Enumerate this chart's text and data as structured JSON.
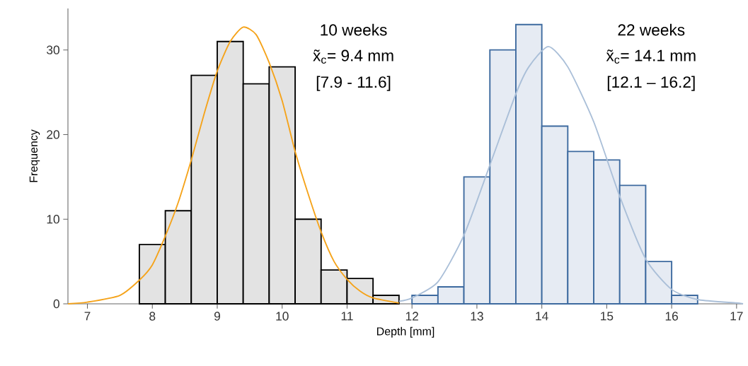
{
  "chart_data": {
    "type": "histogram",
    "xlabel": "Depth [mm]",
    "ylabel": "Frequency",
    "xlim": [
      6.7,
      17.1
    ],
    "xticks": [
      7,
      8,
      9,
      10,
      11,
      12,
      13,
      14,
      15,
      16,
      17
    ],
    "ylim": [
      0,
      34.9
    ],
    "yticks": [
      0,
      10,
      20,
      30
    ],
    "annotations": [
      "10 weeks",
      "x̃$_{c}$= 9.4 mm",
      "[7.9 - 11.6]",
      "22 weeks",
      "x̃$_{c}$= 14.1 mm",
      "[12.1 – 16.2]"
    ],
    "series": [
      {
        "bins": [
          7.8,
          8.2,
          8.6,
          9.0,
          9.4,
          9.8,
          10.2,
          10.6,
          11.0,
          11.4,
          11.8
        ],
        "values": [
          7,
          11,
          27,
          31,
          26,
          28,
          10,
          4,
          3,
          1
        ],
        "color": "#e3e3e3"
      },
      {
        "bins": [
          12.0,
          12.4,
          12.8,
          13.2,
          13.6,
          14.0,
          14.4,
          14.8,
          15.2,
          15.6,
          16.0,
          16.4
        ],
        "values": [
          1,
          2,
          15,
          30,
          33,
          21,
          18,
          17,
          14,
          5,
          1
        ],
        "color": "#e6ebf3"
      },
      {
        "type": "line",
        "x": [
          6.7,
          7.0,
          7.5,
          7.8,
          8.0,
          8.2,
          8.4,
          8.6,
          8.8,
          9.0,
          9.2,
          9.4,
          9.6,
          9.8,
          10.0,
          10.2,
          10.4,
          10.6,
          10.8,
          11.0,
          11.2,
          11.4,
          11.8
        ],
        "values": [
          0,
          0.2,
          1.0,
          2.8,
          4.6,
          8,
          12,
          17,
          22.5,
          27.5,
          31,
          32.7,
          31.8,
          28.5,
          24,
          18,
          13,
          8.5,
          5,
          2.9,
          1.5,
          0.7,
          0.1
        ],
        "color": "#f5a31a"
      },
      {
        "type": "line",
        "x": [
          11.8,
          12.0,
          12.4,
          12.8,
          13.2,
          13.6,
          13.8,
          14.1,
          14.4,
          14.8,
          15.2,
          15.6,
          16.0,
          16.4,
          17.0,
          17.1
        ],
        "values": [
          0.3,
          0.7,
          2.6,
          8.1,
          16.4,
          24.8,
          28,
          30.4,
          28,
          21.5,
          12.7,
          5.3,
          1.7,
          0.5,
          0.1,
          0
        ],
        "color": "#aabfd8"
      }
    ]
  }
}
